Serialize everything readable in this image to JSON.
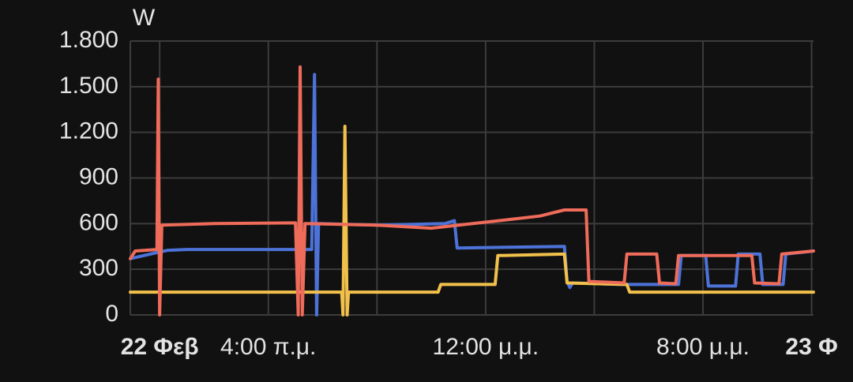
{
  "chart_data": {
    "type": "line",
    "ylabel": "W",
    "xlim": [
      -1.08,
      24.07
    ],
    "ylim": [
      0,
      1800
    ],
    "yticks": [
      0,
      300,
      600,
      900,
      {
        "value": 1200,
        "label": "1.200"
      },
      {
        "value": 1500,
        "label": "1.500"
      },
      {
        "value": 1800,
        "label": "1.800"
      }
    ],
    "xticks": [
      {
        "value": 0,
        "label": "22 Φεβ",
        "bold": true
      },
      {
        "value": 4,
        "label": "4:00 π.μ."
      },
      {
        "value": 8,
        "label": null
      },
      {
        "value": 12,
        "label": "12:00 μ.μ."
      },
      {
        "value": 16,
        "label": null
      },
      {
        "value": 20,
        "label": "8:00 μ.μ."
      },
      {
        "value": 24,
        "label": "23 Φ",
        "bold": true
      }
    ],
    "grid": true,
    "series": [
      {
        "color": "#4d73d9",
        "x": [
          -1.08,
          -0.1,
          0.3,
          1,
          5.6,
          5.7,
          5.78,
          5.85,
          8,
          10.5,
          10.85,
          10.95,
          14.9,
          15.0,
          15.1,
          15.2,
          17,
          19.1,
          19.2,
          20.1,
          20.2,
          21.2,
          21.3,
          22.1,
          22.2,
          22.95,
          23.05,
          24.07
        ],
        "values": [
          370,
          410,
          425,
          430,
          430,
          1580,
          0,
          600,
          590,
          600,
          620,
          440,
          450,
          220,
          180,
          210,
          200,
          200,
          390,
          390,
          190,
          190,
          400,
          400,
          200,
          200,
          400,
          420
        ]
      },
      {
        "color": "#f2c14b",
        "x": [
          -1.08,
          6.7,
          6.75,
          6.82,
          6.9,
          6.95,
          10.25,
          10.35,
          12.35,
          12.45,
          14.9,
          15.0,
          17.2,
          17.3,
          24.07
        ],
        "values": [
          150,
          150,
          0,
          1240,
          0,
          150,
          150,
          200,
          200,
          390,
          400,
          210,
          200,
          150,
          150
        ]
      },
      {
        "color": "#ef6b5a",
        "x": [
          -1.08,
          -0.9,
          -0.1,
          -0.05,
          0,
          0.08,
          2,
          5,
          5.1,
          5.17,
          5.25,
          5.35,
          8,
          10,
          11,
          13,
          14,
          14.9,
          15.7,
          15.8,
          17.1,
          17.2,
          18.3,
          18.4,
          19,
          19.1,
          21.8,
          21.9,
          22.8,
          22.9,
          24.07
        ],
        "values": [
          370,
          420,
          430,
          1550,
          0,
          590,
          600,
          605,
          0,
          1630,
          0,
          600,
          590,
          570,
          590,
          630,
          650,
          690,
          690,
          220,
          210,
          400,
          400,
          210,
          205,
          390,
          390,
          210,
          205,
          400,
          420
        ]
      }
    ]
  }
}
